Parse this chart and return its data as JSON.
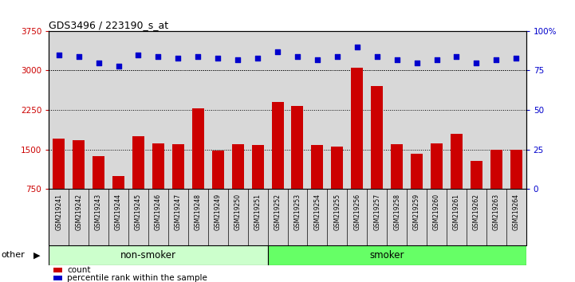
{
  "title": "GDS3496 / 223190_s_at",
  "categories": [
    "GSM219241",
    "GSM219242",
    "GSM219243",
    "GSM219244",
    "GSM219245",
    "GSM219246",
    "GSM219247",
    "GSM219248",
    "GSM219249",
    "GSM219250",
    "GSM219251",
    "GSM219252",
    "GSM219253",
    "GSM219254",
    "GSM219255",
    "GSM219256",
    "GSM219257",
    "GSM219258",
    "GSM219259",
    "GSM219260",
    "GSM219261",
    "GSM219262",
    "GSM219263",
    "GSM219264"
  ],
  "bar_values": [
    1700,
    1680,
    1380,
    1000,
    1750,
    1620,
    1600,
    2280,
    1480,
    1600,
    1580,
    2400,
    2320,
    1580,
    1560,
    3050,
    2700,
    1600,
    1420,
    1620,
    1800,
    1280,
    1490,
    1500
  ],
  "percentile_values": [
    85,
    84,
    80,
    78,
    85,
    84,
    83,
    84,
    83,
    82,
    83,
    87,
    84,
    82,
    84,
    90,
    84,
    82,
    80,
    82,
    84,
    80,
    82,
    83
  ],
  "group_labels": [
    "non-smoker",
    "smoker"
  ],
  "nonsmoker_count": 11,
  "smoker_count": 13,
  "group_colors": [
    "#ccffcc",
    "#66ff66"
  ],
  "bar_color": "#cc0000",
  "dot_color": "#0000cc",
  "ylim_left": [
    750,
    3750
  ],
  "ylim_right": [
    0,
    100
  ],
  "yticks_left": [
    750,
    1500,
    2250,
    3000,
    3750
  ],
  "yticks_right": [
    0,
    25,
    50,
    75,
    100
  ],
  "grid_values": [
    1500,
    2250,
    3000
  ],
  "background_color": "#ffffff",
  "plot_bg_color": "#d8d8d8",
  "legend_count_label": "count",
  "legend_pct_label": "percentile rank within the sample",
  "other_label": "other"
}
